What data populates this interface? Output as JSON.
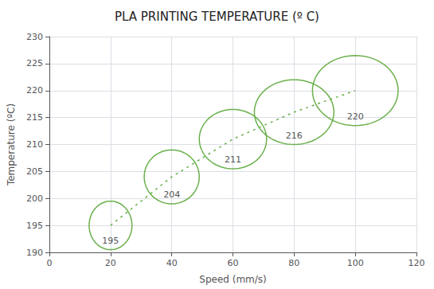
{
  "chart_data": {
    "type": "line",
    "title": "PLA PRINTING TEMPERATURE (º C)",
    "xlabel": "Speed (mm/s)",
    "ylabel": "Temperature (ºC)",
    "x": [
      20,
      40,
      60,
      80,
      100
    ],
    "values": [
      195,
      204,
      211,
      216,
      220
    ],
    "x_radii": [
      7,
      9,
      11,
      13,
      14
    ],
    "y_radii": [
      4.5,
      5.0,
      5.5,
      6.0,
      6.5
    ],
    "color": "#6ab04c",
    "line_style": "dashed",
    "data_labels": true,
    "xlim": [
      0,
      120
    ],
    "ylim": [
      190,
      230
    ],
    "xticks": [
      0,
      20,
      40,
      60,
      80,
      100,
      120
    ],
    "yticks": [
      190,
      195,
      200,
      205,
      210,
      215,
      220,
      225,
      230
    ],
    "grid": true
  }
}
